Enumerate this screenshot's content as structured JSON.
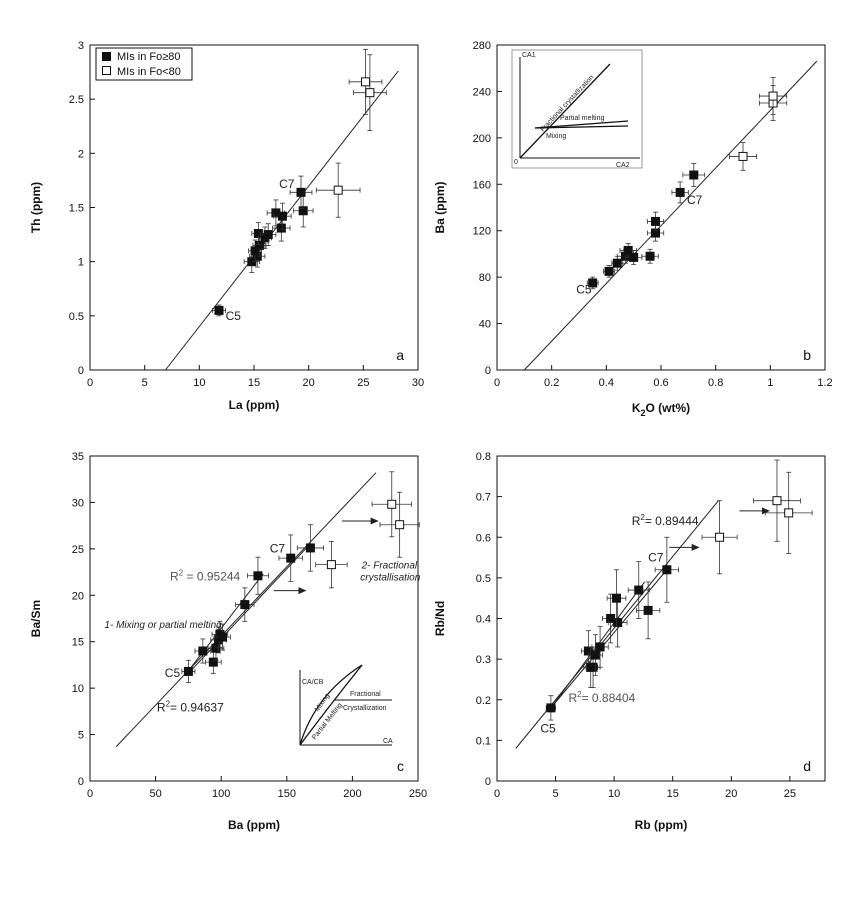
{
  "legend": {
    "filled_label": "MIs in Fo≥80",
    "open_label": "MIs in Fo<80"
  },
  "chart_data": [
    {
      "id": "a",
      "type": "scatter",
      "panel_letter": "a",
      "xlabel": "La (ppm)",
      "ylabel": "Th (ppm)",
      "xlim": [
        0,
        30
      ],
      "ylim": [
        0,
        3
      ],
      "xticks": [
        0,
        5,
        10,
        15,
        20,
        25,
        30
      ],
      "yticks": [
        0,
        0.5,
        1,
        1.5,
        2,
        2.5,
        3
      ],
      "ytick_labels": [
        "0",
        "0.5",
        "1",
        "1.5",
        "2",
        "2.5",
        "3"
      ],
      "grid": false,
      "series": [
        {
          "marker": "filled",
          "points": [
            {
              "x": 11.8,
              "y": 0.55,
              "ex": 0.6,
              "ey": 0.05
            },
            {
              "x": 14.8,
              "y": 1.0,
              "ex": 0.7,
              "ey": 0.1
            },
            {
              "x": 15.3,
              "y": 1.05,
              "ex": 0.7,
              "ey": 0.1
            },
            {
              "x": 15.1,
              "y": 1.1,
              "ex": 0.6,
              "ey": 0.1
            },
            {
              "x": 15.5,
              "y": 1.15,
              "ex": 0.6,
              "ey": 0.1
            },
            {
              "x": 15.4,
              "y": 1.26,
              "ex": 0.6,
              "ey": 0.1
            },
            {
              "x": 16.0,
              "y": 1.22,
              "ex": 0.6,
              "ey": 0.1
            },
            {
              "x": 16.3,
              "y": 1.25,
              "ex": 0.7,
              "ey": 0.1
            },
            {
              "x": 17.0,
              "y": 1.45,
              "ex": 0.8,
              "ey": 0.12
            },
            {
              "x": 17.5,
              "y": 1.31,
              "ex": 0.8,
              "ey": 0.12
            },
            {
              "x": 17.6,
              "y": 1.42,
              "ex": 0.8,
              "ey": 0.12
            },
            {
              "x": 19.5,
              "y": 1.47,
              "ex": 0.9,
              "ey": 0.15
            },
            {
              "x": 19.3,
              "y": 1.64,
              "ex": 1.0,
              "ey": 0.15
            }
          ]
        },
        {
          "marker": "open",
          "points": [
            {
              "x": 22.7,
              "y": 1.66,
              "ex": 2.0,
              "ey": 0.25
            },
            {
              "x": 25.2,
              "y": 2.66,
              "ex": 1.5,
              "ey": 0.3
            },
            {
              "x": 25.6,
              "y": 2.56,
              "ex": 1.5,
              "ey": 0.35
            }
          ]
        }
      ],
      "trendlines": [
        {
          "x1": 6.9,
          "y1": 0,
          "x2": 28.2,
          "y2": 2.76
        }
      ],
      "annotations": [
        {
          "text": "C7",
          "x": 17.3,
          "y": 1.68
        },
        {
          "text": "C5",
          "x": 12.4,
          "y": 0.46
        }
      ]
    },
    {
      "id": "b",
      "type": "scatter",
      "panel_letter": "b",
      "xlabel_prefix": "K",
      "xlabel_sub": "2",
      "xlabel_suffix": "O (wt%)",
      "ylabel": "Ba (ppm)",
      "xlim": [
        0,
        1.2
      ],
      "ylim": [
        0,
        280
      ],
      "xticks": [
        0,
        0.2,
        0.4,
        0.6,
        0.8,
        1,
        1.2
      ],
      "xtick_labels": [
        "0",
        "0.2",
        "0.4",
        "0.6",
        "0.8",
        "1",
        "1.2"
      ],
      "yticks": [
        0,
        40,
        80,
        120,
        160,
        200,
        240,
        280
      ],
      "grid": false,
      "series": [
        {
          "marker": "filled",
          "points": [
            {
              "x": 0.35,
              "y": 75,
              "ex": 0.02,
              "ey": 5
            },
            {
              "x": 0.41,
              "y": 85,
              "ex": 0.02,
              "ey": 5
            },
            {
              "x": 0.44,
              "y": 92,
              "ex": 0.02,
              "ey": 6
            },
            {
              "x": 0.47,
              "y": 98,
              "ex": 0.03,
              "ey": 6
            },
            {
              "x": 0.48,
              "y": 103,
              "ex": 0.03,
              "ey": 6
            },
            {
              "x": 0.5,
              "y": 97,
              "ex": 0.03,
              "ey": 6
            },
            {
              "x": 0.56,
              "y": 98,
              "ex": 0.03,
              "ey": 6
            },
            {
              "x": 0.58,
              "y": 118,
              "ex": 0.03,
              "ey": 7
            },
            {
              "x": 0.58,
              "y": 128,
              "ex": 0.03,
              "ey": 8
            },
            {
              "x": 0.67,
              "y": 153,
              "ex": 0.03,
              "ey": 9
            },
            {
              "x": 0.72,
              "y": 168,
              "ex": 0.04,
              "ey": 10
            }
          ]
        },
        {
          "marker": "open",
          "points": [
            {
              "x": 0.9,
              "y": 184,
              "ex": 0.05,
              "ey": 12
            },
            {
              "x": 1.01,
              "y": 230,
              "ex": 0.05,
              "ey": 15
            },
            {
              "x": 1.01,
              "y": 236,
              "ex": 0.05,
              "ey": 16
            }
          ]
        }
      ],
      "trendlines": [
        {
          "x1": 0.1,
          "y1": 0,
          "x2": 1.17,
          "y2": 266
        }
      ],
      "annotations": [
        {
          "text": "C7",
          "x": 0.695,
          "y": 143
        },
        {
          "text": "C5",
          "x": 0.29,
          "y": 66
        }
      ],
      "inset": {
        "y_label": "CA1",
        "x_label": "CA2",
        "origin_label": "0",
        "fractional": "Fractional crystallization",
        "partial": "Partial melting",
        "mixing": "Mixing"
      }
    },
    {
      "id": "c",
      "type": "scatter",
      "panel_letter": "c",
      "xlabel": "Ba (ppm)",
      "ylabel": "Ba/Sm",
      "xlim": [
        0,
        250
      ],
      "ylim": [
        0,
        35
      ],
      "xticks": [
        0,
        50,
        100,
        150,
        200,
        250
      ],
      "yticks": [
        0,
        5,
        10,
        15,
        20,
        25,
        30,
        35
      ],
      "grid": false,
      "series": [
        {
          "marker": "filled",
          "points": [
            {
              "x": 75,
              "y": 11.8,
              "ex": 5,
              "ey": 1.2
            },
            {
              "x": 86,
              "y": 14.0,
              "ex": 6,
              "ey": 1.3
            },
            {
              "x": 94,
              "y": 12.8,
              "ex": 6,
              "ey": 1.2
            },
            {
              "x": 96,
              "y": 14.3,
              "ex": 6,
              "ey": 1.3
            },
            {
              "x": 98,
              "y": 15.2,
              "ex": 6,
              "ey": 1.4
            },
            {
              "x": 99,
              "y": 15.8,
              "ex": 6,
              "ey": 1.4
            },
            {
              "x": 101,
              "y": 15.5,
              "ex": 6,
              "ey": 1.4
            },
            {
              "x": 118,
              "y": 19.0,
              "ex": 7,
              "ey": 1.8
            },
            {
              "x": 128,
              "y": 22.1,
              "ex": 8,
              "ey": 2.0
            },
            {
              "x": 153,
              "y": 24.0,
              "ex": 9,
              "ey": 2.5
            },
            {
              "x": 168,
              "y": 25.1,
              "ex": 10,
              "ey": 2.5
            }
          ]
        },
        {
          "marker": "open",
          "points": [
            {
              "x": 184,
              "y": 23.3,
              "ex": 12,
              "ey": 2.5
            },
            {
              "x": 230,
              "y": 29.8,
              "ex": 15,
              "ey": 3.5
            },
            {
              "x": 236,
              "y": 27.6,
              "ex": 15,
              "ey": 3.5
            }
          ]
        }
      ],
      "trendlines": [
        {
          "x1": 20,
          "y1": 3.7,
          "x2": 218,
          "y2": 33.2
        },
        {
          "x1": 73,
          "y1": 11.3,
          "x2": 165,
          "y2": 25.1
        },
        {
          "x1": 73,
          "y1": 11.5,
          "x2": 132,
          "y2": 22.3
        }
      ],
      "annotations": [
        {
          "text": "C7",
          "x": 137,
          "y": 24.6,
          "style": "normal"
        },
        {
          "text": "C5",
          "x": 57,
          "y": 11.2,
          "style": "normal"
        }
      ],
      "r2_labels": [
        {
          "prefix": "R",
          "exp": "2",
          "value": " = 0.95244",
          "x": 61,
          "y": 21.6,
          "style": "gray"
        },
        {
          "prefix": "R",
          "exp": "2",
          "value": "= 0.94637",
          "x": 51,
          "y": 7.5,
          "style": "dark"
        }
      ],
      "process_labels": [
        {
          "text": "1- Mixing or partial melting",
          "x": 11,
          "y": 16.5
        },
        {
          "text": "2- Fractional",
          "x": 207,
          "y": 22.9
        },
        {
          "text": "crystallisation",
          "x": 206,
          "y": 21.6
        }
      ],
      "arrows": [
        {
          "x1": 140,
          "y1": 20.5,
          "x2": 165,
          "y2": 20.5
        },
        {
          "x1": 192,
          "y1": 28.0,
          "x2": 220,
          "y2": 28.0
        }
      ],
      "inset": {
        "y_label": "CA/CB",
        "x_label": "CA",
        "fractional": "Fractional",
        "crystallization": "Crystallization",
        "mixing": "Mixing",
        "partial": "Partial Melting"
      }
    },
    {
      "id": "d",
      "type": "scatter",
      "panel_letter": "d",
      "xlabel": "Rb (ppm)",
      "ylabel": "Rb/Nd",
      "xlim": [
        0,
        28
      ],
      "ylim": [
        0,
        0.8
      ],
      "xticks": [
        0,
        5,
        10,
        15,
        20,
        25
      ],
      "yticks": [
        0,
        0.1,
        0.2,
        0.3,
        0.4,
        0.5,
        0.6,
        0.7,
        0.8
      ],
      "ytick_labels": [
        "0",
        "0.1",
        "0.2",
        "0.3",
        "0.4",
        "0.5",
        "0.6",
        "0.7",
        "0.8"
      ],
      "grid": false,
      "series": [
        {
          "marker": "filled",
          "points": [
            {
              "x": 4.6,
              "y": 0.18,
              "ex": 0.4,
              "ey": 0.03
            },
            {
              "x": 7.8,
              "y": 0.32,
              "ex": 0.6,
              "ey": 0.05
            },
            {
              "x": 8.0,
              "y": 0.28,
              "ex": 0.6,
              "ey": 0.05
            },
            {
              "x": 8.2,
              "y": 0.28,
              "ex": 0.6,
              "ey": 0.05
            },
            {
              "x": 8.4,
              "y": 0.31,
              "ex": 0.6,
              "ey": 0.05
            },
            {
              "x": 8.8,
              "y": 0.33,
              "ex": 0.7,
              "ey": 0.05
            },
            {
              "x": 9.7,
              "y": 0.4,
              "ex": 0.7,
              "ey": 0.06
            },
            {
              "x": 10.3,
              "y": 0.39,
              "ex": 0.8,
              "ey": 0.06
            },
            {
              "x": 10.2,
              "y": 0.45,
              "ex": 0.8,
              "ey": 0.07
            },
            {
              "x": 12.1,
              "y": 0.47,
              "ex": 0.9,
              "ey": 0.07
            },
            {
              "x": 12.9,
              "y": 0.42,
              "ex": 1.0,
              "ey": 0.07
            },
            {
              "x": 14.5,
              "y": 0.52,
              "ex": 1.0,
              "ey": 0.08
            }
          ]
        },
        {
          "marker": "open",
          "points": [
            {
              "x": 19.0,
              "y": 0.6,
              "ex": 1.5,
              "ey": 0.09
            },
            {
              "x": 23.9,
              "y": 0.69,
              "ex": 2.0,
              "ey": 0.1
            },
            {
              "x": 24.9,
              "y": 0.66,
              "ex": 2.0,
              "ey": 0.1
            }
          ]
        }
      ],
      "trendlines": [
        {
          "x1": 1.6,
          "y1": 0.08,
          "x2": 18.9,
          "y2": 0.69
        },
        {
          "x1": 4.6,
          "y1": 0.18,
          "x2": 14.5,
          "y2": 0.52
        },
        {
          "x1": 4.6,
          "y1": 0.18,
          "x2": 12.6,
          "y2": 0.49
        }
      ],
      "annotations": [
        {
          "text": "C7",
          "x": 12.9,
          "y": 0.54
        },
        {
          "text": "C5",
          "x": 3.7,
          "y": 0.12
        }
      ],
      "r2_labels": [
        {
          "prefix": "R",
          "exp": "2",
          "value": "= 0.89444",
          "x": 11.5,
          "y": 0.63,
          "style": "dark"
        },
        {
          "prefix": "R",
          "exp": "2",
          "value": "= 0.88404",
          "x": 6.1,
          "y": 0.195,
          "style": "gray"
        }
      ],
      "arrows": [
        {
          "x1": 14.7,
          "y1": 0.575,
          "x2": 17.3,
          "y2": 0.575
        },
        {
          "x1": 20.7,
          "y1": 0.665,
          "x2": 23.3,
          "y2": 0.665
        }
      ]
    }
  ]
}
